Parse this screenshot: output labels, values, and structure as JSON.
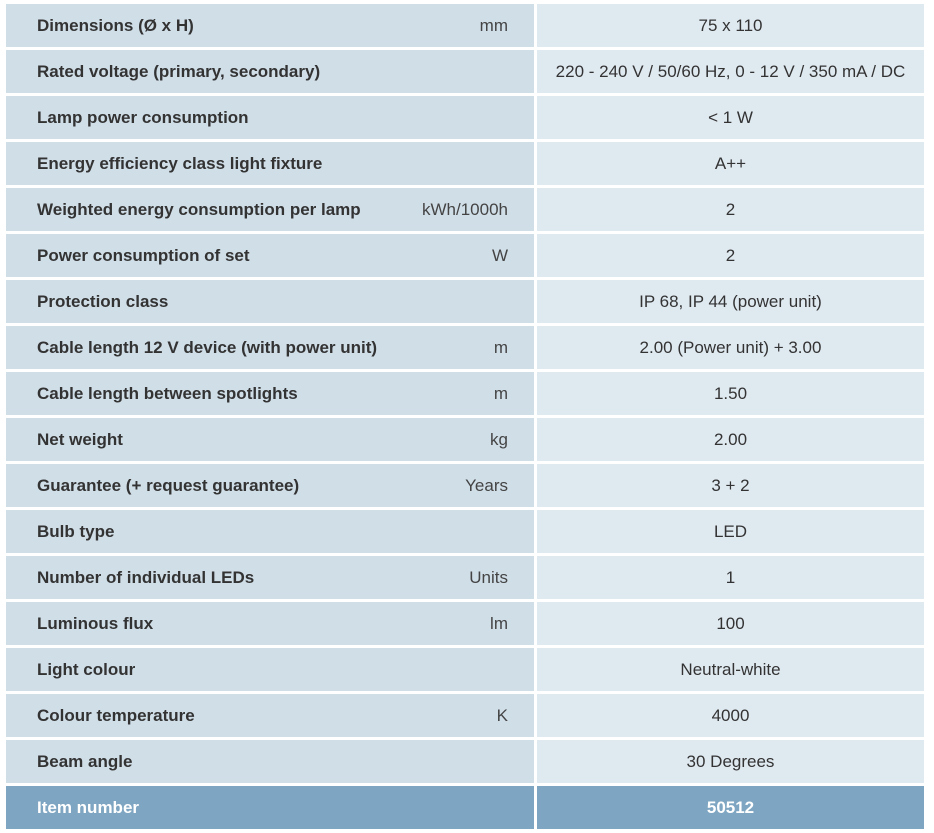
{
  "rows": [
    {
      "label": "Dimensions (Ø x H)",
      "unit": "mm",
      "value": "75 x 110"
    },
    {
      "label": "Rated voltage (primary, secondary)",
      "unit": "",
      "value": "220 - 240 V / 50/60 Hz, 0 - 12 V / 350 mA / DC"
    },
    {
      "label": "Lamp power consumption",
      "unit": "",
      "value": "< 1 W"
    },
    {
      "label": "Energy efficiency class light fixture",
      "unit": "",
      "value": "A++"
    },
    {
      "label": "Weighted energy consumption per lamp",
      "unit": "kWh/1000h",
      "value": "2"
    },
    {
      "label": "Power consumption of set",
      "unit": "W",
      "value": "2"
    },
    {
      "label": "Protection class",
      "unit": "",
      "value": "IP 68, IP 44 (power unit)"
    },
    {
      "label": "Cable length 12 V device (with power unit)",
      "unit": "m",
      "value": "2.00 (Power unit) + 3.00"
    },
    {
      "label": "Cable length between spotlights",
      "unit": "m",
      "value": "1.50"
    },
    {
      "label": "Net weight",
      "unit": "kg",
      "value": "2.00"
    },
    {
      "label": "Guarantee (+ request guarantee)",
      "unit": "Years",
      "value": "3 + 2"
    },
    {
      "label": "Bulb type",
      "unit": "",
      "value": "LED"
    },
    {
      "label": "Number of individual LEDs",
      "unit": "Units",
      "value": "1"
    },
    {
      "label": "Luminous flux",
      "unit": "lm",
      "value": "100"
    },
    {
      "label": "Light colour",
      "unit": "",
      "value": "Neutral-white"
    },
    {
      "label": "Colour temperature",
      "unit": "K",
      "value": "4000"
    },
    {
      "label": "Beam angle",
      "unit": "",
      "value": "30 Degrees"
    }
  ],
  "item_number": {
    "label": "Item number",
    "value": "50512"
  },
  "colors": {
    "label_cell_bg": "#d0dee8",
    "value_cell_bg": "#dfe9f0",
    "highlight_bg": "#7ea6c2",
    "text": "#333333"
  }
}
